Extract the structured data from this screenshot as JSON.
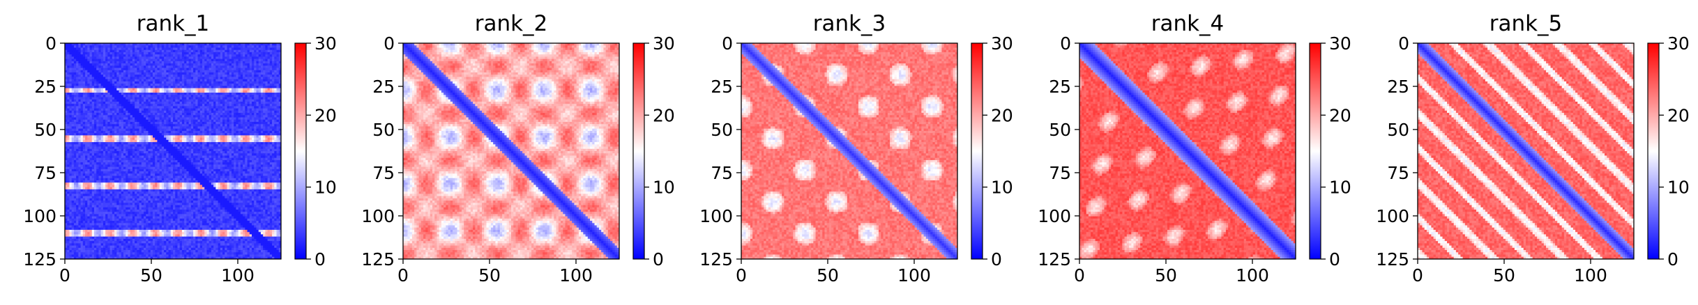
{
  "chart_data": [
    {
      "type": "heatmap",
      "title": "rank_1",
      "pattern": "blue-dominant with red stripes every ~27 rows",
      "xlim": [
        0,
        125
      ],
      "ylim": [
        125,
        0
      ],
      "xticks": [
        "0",
        "50",
        "100"
      ],
      "yticks": [
        "0",
        "25",
        "50",
        "75",
        "100",
        "125"
      ],
      "colorbar": {
        "range": [
          0,
          30
        ],
        "ticks": [
          "0",
          "10",
          "20",
          "30"
        ],
        "colormap": [
          "#0000ff",
          "#ffffff",
          "#ff0000"
        ]
      }
    },
    {
      "type": "heatmap",
      "title": "rank_2",
      "pattern": "blue blocks on pink background with diagonal",
      "xlim": [
        0,
        125
      ],
      "ylim": [
        125,
        0
      ],
      "xticks": [
        "0",
        "50",
        "100"
      ],
      "yticks": [
        "0",
        "25",
        "50",
        "75",
        "100",
        "125"
      ],
      "colorbar": {
        "range": [
          0,
          30
        ],
        "ticks": [
          "0",
          "10",
          "20",
          "30"
        ],
        "colormap": [
          "#0000ff",
          "#ffffff",
          "#ff0000"
        ]
      }
    },
    {
      "type": "heatmap",
      "title": "rank_3",
      "pattern": "mostly red with blue diagonal and pale blue blobs",
      "xlim": [
        0,
        125
      ],
      "ylim": [
        125,
        0
      ],
      "xticks": [
        "0",
        "50",
        "100"
      ],
      "yticks": [
        "0",
        "25",
        "50",
        "75",
        "100",
        "125"
      ],
      "colorbar": {
        "range": [
          0,
          30
        ],
        "ticks": [
          "0",
          "10",
          "20",
          "30"
        ],
        "colormap": [
          "#0000ff",
          "#ffffff",
          "#ff0000"
        ]
      }
    },
    {
      "type": "heatmap",
      "title": "rank_4",
      "pattern": "red with wide blue diagonal band and off-diagonal blobs",
      "xlim": [
        0,
        125
      ],
      "ylim": [
        125,
        0
      ],
      "xticks": [
        "0",
        "50",
        "100"
      ],
      "yticks": [
        "0",
        "25",
        "50",
        "75",
        "100",
        "125"
      ],
      "colorbar": {
        "range": [
          0,
          30
        ],
        "ticks": [
          "0",
          "10",
          "20",
          "30"
        ],
        "colormap": [
          "#0000ff",
          "#ffffff",
          "#ff0000"
        ]
      }
    },
    {
      "type": "heatmap",
      "title": "rank_5",
      "pattern": "red with blue diagonal and parallel faint blue lines",
      "xlim": [
        0,
        125
      ],
      "ylim": [
        125,
        0
      ],
      "xticks": [
        "0",
        "50",
        "100"
      ],
      "yticks": [
        "0",
        "25",
        "50",
        "75",
        "100",
        "125"
      ],
      "colorbar": {
        "range": [
          0,
          30
        ],
        "ticks": [
          "0",
          "10",
          "20",
          "30"
        ],
        "colormap": [
          "#0000ff",
          "#ffffff",
          "#ff0000"
        ]
      }
    }
  ]
}
